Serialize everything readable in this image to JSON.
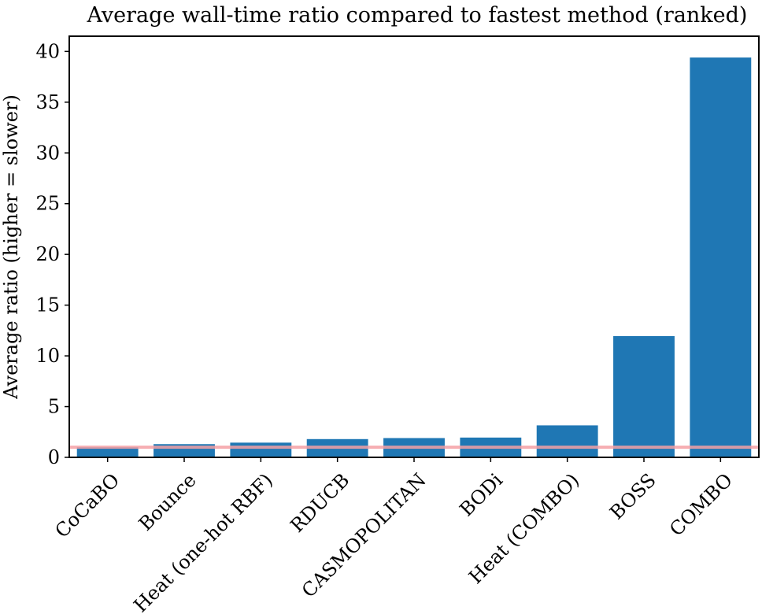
{
  "chart_data": {
    "type": "bar",
    "title": "Average wall-time ratio compared to fastest method (ranked)",
    "xlabel": "",
    "ylabel": "Average ratio (higher = slower)",
    "categories": [
      "CoCaBO",
      "Bounce",
      "Heat (one-hot RBF)",
      "RDUCB",
      "CASMOPOLITAN",
      "BODi",
      "Heat (COMBO)",
      "BOSS",
      "COMBO"
    ],
    "values": [
      1.0,
      1.3,
      1.45,
      1.8,
      1.9,
      1.95,
      3.15,
      11.95,
      39.4
    ],
    "ylim": [
      0,
      41.5
    ],
    "yticks": [
      0,
      5,
      10,
      15,
      20,
      25,
      30,
      35,
      40
    ],
    "reference_line": 1.0,
    "grid": false,
    "colors": {
      "bar": "#1f77b4",
      "reference_line": "#f4a0a5"
    }
  }
}
